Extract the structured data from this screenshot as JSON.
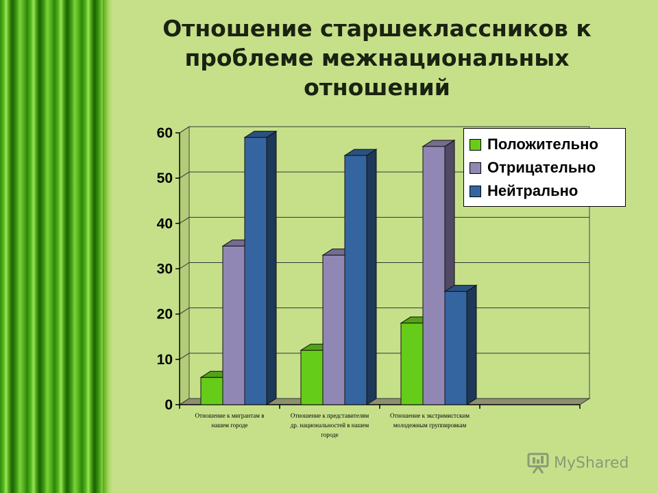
{
  "slide": {
    "title": "Отношение старшеклассников к\nпроблеме межнациональных\nотношений",
    "watermark": "MyShared"
  },
  "chart_data": {
    "type": "bar",
    "categories": [
      "Отношение к мигрантам в\nнашем городе",
      "Отношение к представителям\nдр. национальностей в нашем\nгороде",
      "Отношение к экстримистским\nмолодежным группировкам",
      ""
    ],
    "series": [
      {
        "name": "Положительно",
        "values": [
          6,
          12,
          18,
          null
        ],
        "color": "#66cc1a"
      },
      {
        "name": "Отрицательно",
        "values": [
          35,
          33,
          57,
          null
        ],
        "color": "#9187b5"
      },
      {
        "name": "Нейтрально",
        "values": [
          59,
          55,
          25,
          null
        ],
        "color": "#3565a0"
      }
    ],
    "yticks": [
      "0",
      "10",
      "20",
      "30",
      "40",
      "50",
      "60"
    ],
    "ylim": [
      0,
      60
    ],
    "grid": true,
    "legend_position": "top-right",
    "plot_background": "#c6e08a"
  }
}
